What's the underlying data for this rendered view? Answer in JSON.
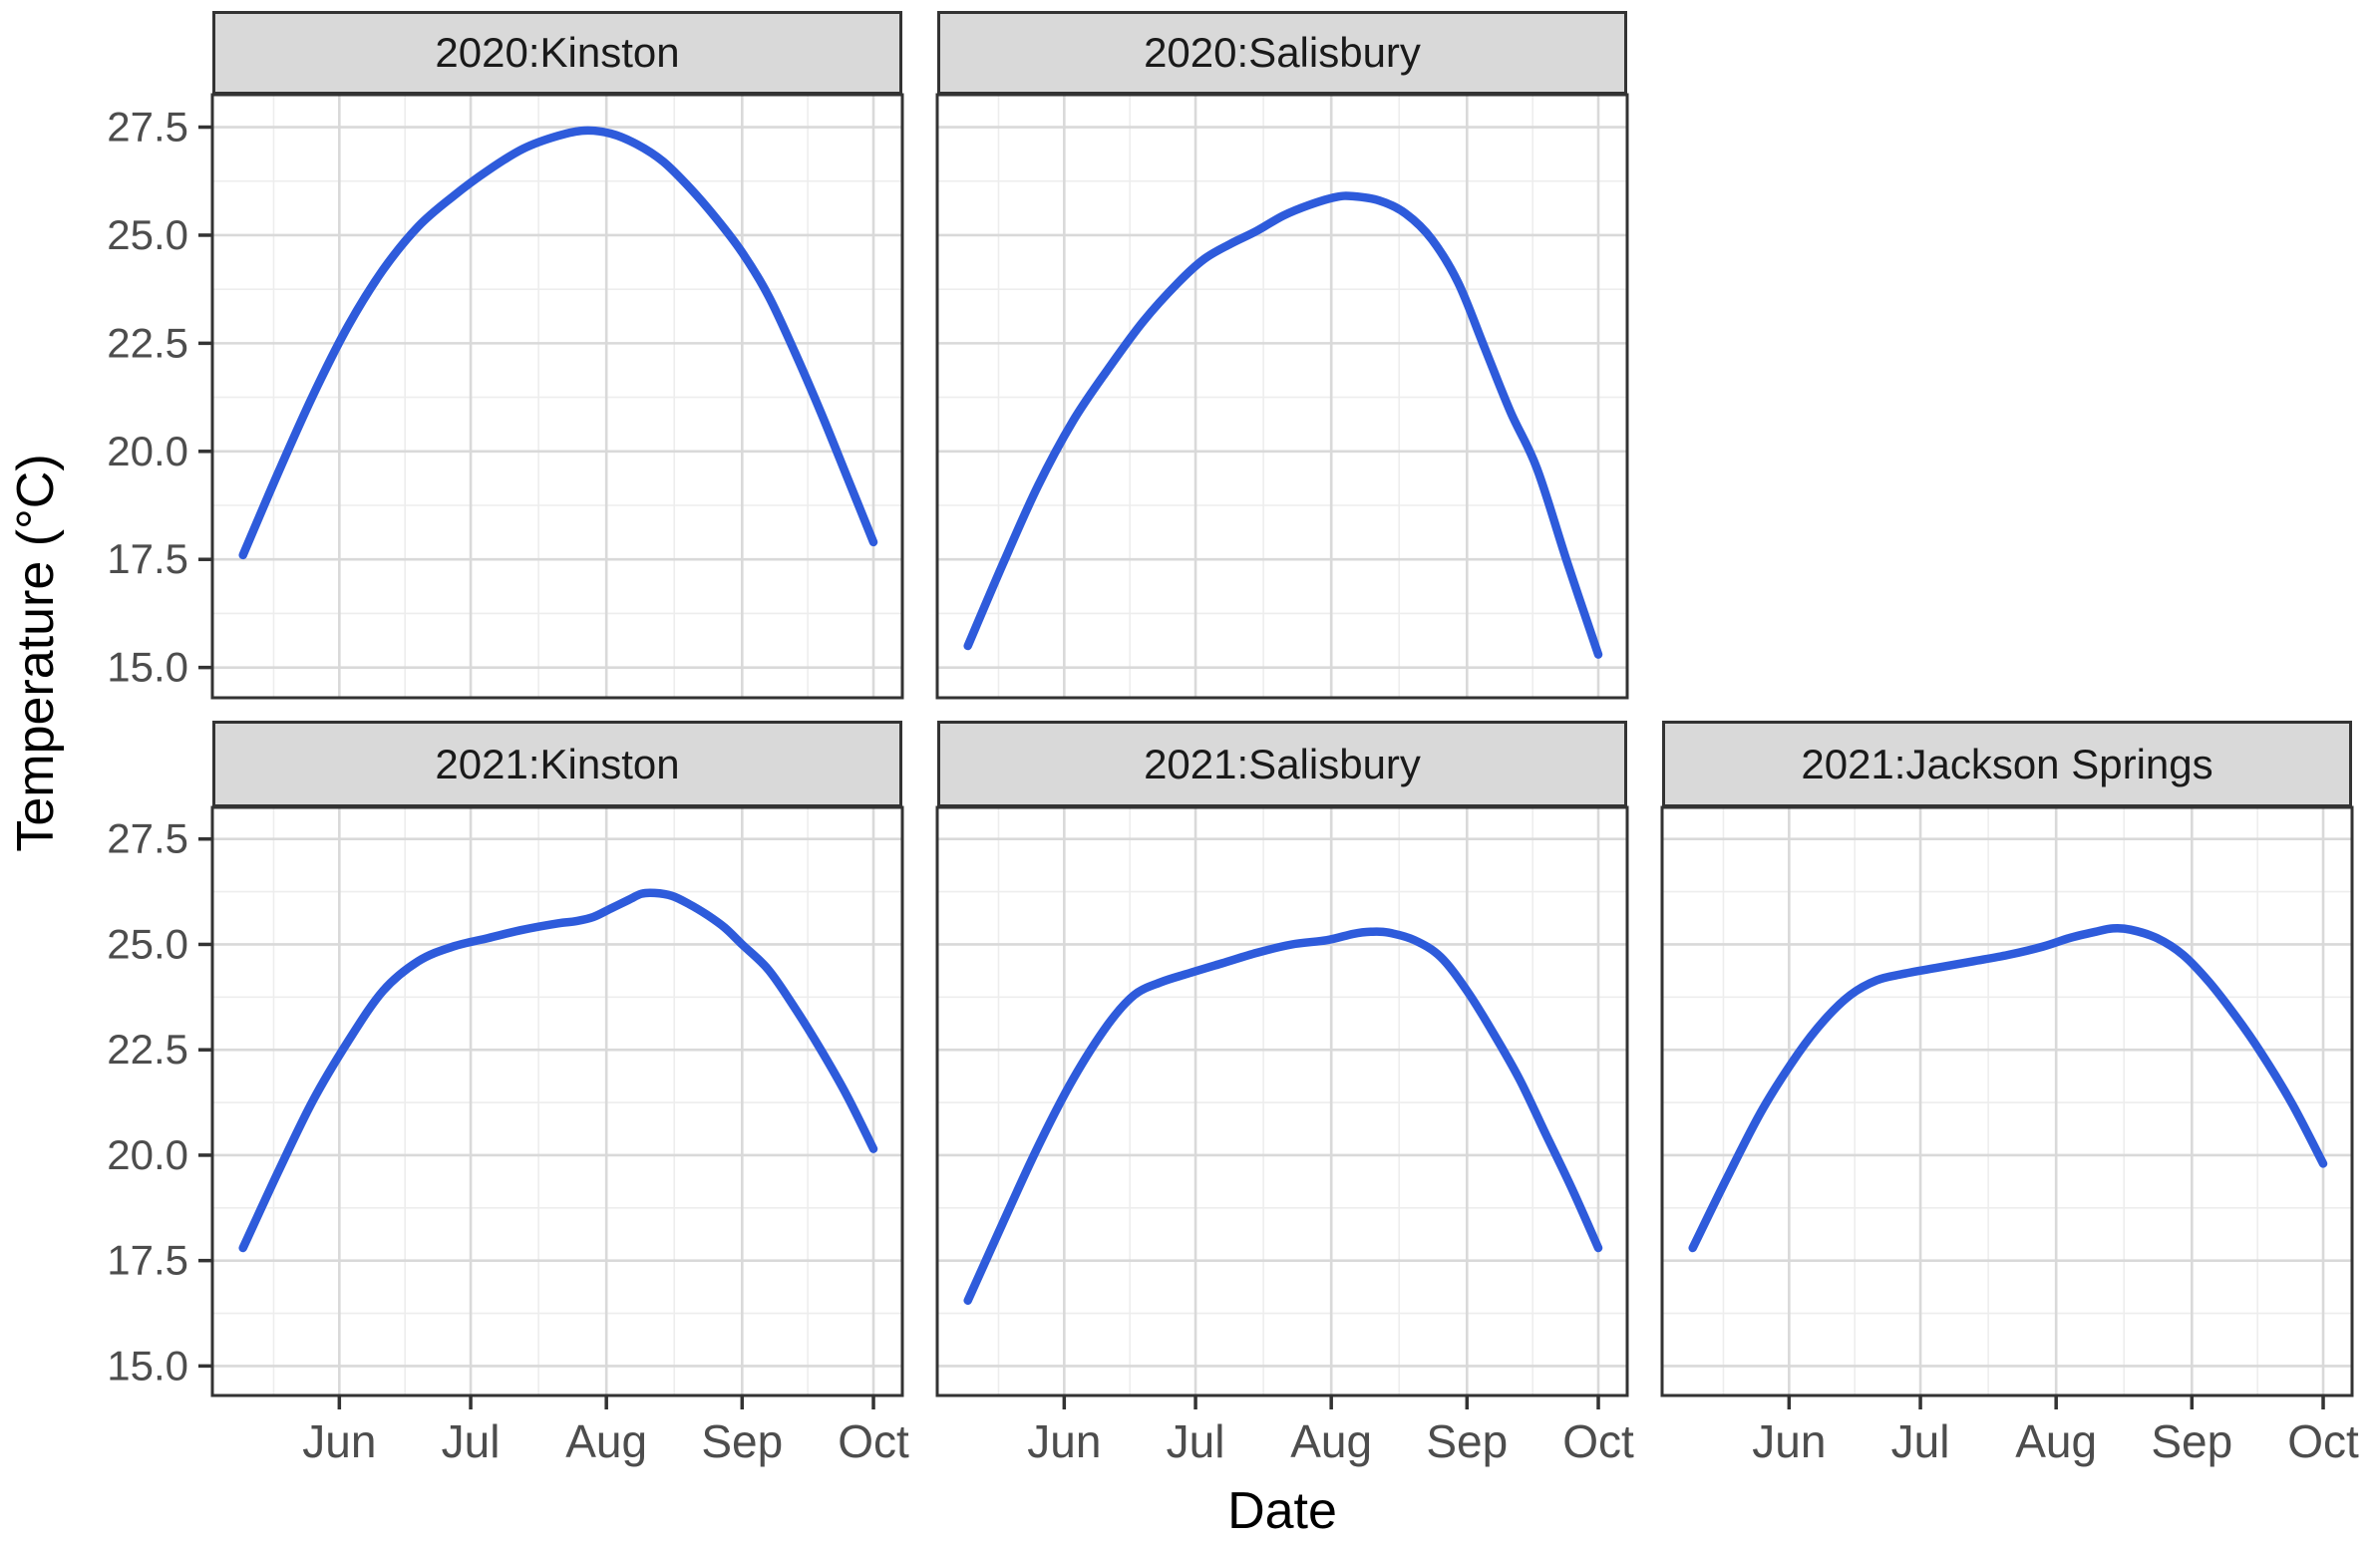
{
  "figure": {
    "x_axis_title": "Date",
    "y_axis_title": "Temperature (°C)"
  },
  "chart_data": {
    "type": "line",
    "title": "",
    "xlabel": "Date",
    "ylabel": "Temperature (°C)",
    "facet_variable": "year:location",
    "legend": "none",
    "grid": "on",
    "x_unit": "days since May 10",
    "x_domain": [
      -7,
      150.6
    ],
    "y_domain": [
      14.3,
      28.25
    ],
    "x_tick_labels": [
      "Jun",
      "Jul",
      "Aug",
      "Sep",
      "Oct"
    ],
    "x_tick_days": [
      22,
      52,
      83,
      114,
      144
    ],
    "x_minor_days": [
      7,
      37,
      67.5,
      98.5,
      129
    ],
    "y_tick_labels": [
      "15.0",
      "17.5",
      "20.0",
      "22.5",
      "25.0",
      "27.5"
    ],
    "y_tick_values": [
      15.0,
      17.5,
      20.0,
      22.5,
      25.0,
      27.5
    ],
    "y_minor_values": [
      16.25,
      18.75,
      21.25,
      23.75,
      26.25
    ],
    "line_color": "#2E5BDB",
    "grid_major_color": "#D9D9D9",
    "grid_minor_color": "#EDEDED",
    "strip_fill": "#D9D9D9",
    "border_color": "#333333",
    "tick_label_color": "#4d4d4d",
    "panels": [
      {
        "facet": "2020:Kinston",
        "row": 0,
        "col": 0,
        "points": [
          [
            0,
            17.6
          ],
          [
            8,
            19.5
          ],
          [
            16,
            21.3
          ],
          [
            24,
            22.9
          ],
          [
            32,
            24.2
          ],
          [
            40,
            25.2
          ],
          [
            48,
            25.9
          ],
          [
            56,
            26.5
          ],
          [
            64,
            27.0
          ],
          [
            72,
            27.3
          ],
          [
            78,
            27.42
          ],
          [
            84,
            27.35
          ],
          [
            90,
            27.1
          ],
          [
            96,
            26.7
          ],
          [
            102,
            26.1
          ],
          [
            108,
            25.4
          ],
          [
            114,
            24.6
          ],
          [
            120,
            23.6
          ],
          [
            126,
            22.3
          ],
          [
            132,
            20.9
          ],
          [
            138,
            19.4
          ],
          [
            144,
            17.9
          ]
        ]
      },
      {
        "facet": "2020:Salisbury",
        "row": 0,
        "col": 1,
        "points": [
          [
            0,
            15.5
          ],
          [
            8,
            17.4
          ],
          [
            16,
            19.2
          ],
          [
            24,
            20.7
          ],
          [
            32,
            21.9
          ],
          [
            40,
            23.0
          ],
          [
            48,
            23.9
          ],
          [
            54,
            24.45
          ],
          [
            60,
            24.8
          ],
          [
            66,
            25.1
          ],
          [
            72,
            25.45
          ],
          [
            78,
            25.7
          ],
          [
            84,
            25.88
          ],
          [
            88,
            25.9
          ],
          [
            94,
            25.8
          ],
          [
            100,
            25.5
          ],
          [
            106,
            24.9
          ],
          [
            112,
            23.9
          ],
          [
            118,
            22.4
          ],
          [
            124,
            20.9
          ],
          [
            130,
            19.6
          ],
          [
            137,
            17.4
          ],
          [
            144,
            15.3
          ]
        ]
      },
      {
        "facet": "2021:Kinston",
        "row": 1,
        "col": 0,
        "points": [
          [
            0,
            17.8
          ],
          [
            8,
            19.6
          ],
          [
            16,
            21.3
          ],
          [
            24,
            22.7
          ],
          [
            32,
            23.9
          ],
          [
            40,
            24.6
          ],
          [
            48,
            24.95
          ],
          [
            56,
            25.15
          ],
          [
            64,
            25.35
          ],
          [
            72,
            25.5
          ],
          [
            76,
            25.55
          ],
          [
            80,
            25.65
          ],
          [
            84,
            25.85
          ],
          [
            88,
            26.05
          ],
          [
            91,
            26.2
          ],
          [
            94,
            26.22
          ],
          [
            98,
            26.15
          ],
          [
            102,
            25.95
          ],
          [
            106,
            25.7
          ],
          [
            110,
            25.4
          ],
          [
            114,
            25.0
          ],
          [
            120,
            24.4
          ],
          [
            126,
            23.5
          ],
          [
            132,
            22.5
          ],
          [
            138,
            21.4
          ],
          [
            144,
            20.15
          ]
        ]
      },
      {
        "facet": "2021:Salisbury",
        "row": 1,
        "col": 1,
        "points": [
          [
            0,
            16.55
          ],
          [
            8,
            18.4
          ],
          [
            16,
            20.2
          ],
          [
            24,
            21.8
          ],
          [
            32,
            23.1
          ],
          [
            38,
            23.8
          ],
          [
            44,
            24.1
          ],
          [
            50,
            24.3
          ],
          [
            58,
            24.55
          ],
          [
            66,
            24.8
          ],
          [
            74,
            25.0
          ],
          [
            82,
            25.1
          ],
          [
            88,
            25.25
          ],
          [
            92,
            25.3
          ],
          [
            96,
            25.28
          ],
          [
            102,
            25.1
          ],
          [
            108,
            24.7
          ],
          [
            114,
            23.9
          ],
          [
            120,
            22.9
          ],
          [
            126,
            21.8
          ],
          [
            132,
            20.5
          ],
          [
            138,
            19.2
          ],
          [
            144,
            17.8
          ]
        ]
      },
      {
        "facet": "2021:Jackson Springs",
        "row": 1,
        "col": 2,
        "points": [
          [
            0,
            17.8
          ],
          [
            8,
            19.5
          ],
          [
            16,
            21.1
          ],
          [
            24,
            22.4
          ],
          [
            30,
            23.2
          ],
          [
            36,
            23.8
          ],
          [
            42,
            24.15
          ],
          [
            48,
            24.3
          ],
          [
            56,
            24.45
          ],
          [
            64,
            24.6
          ],
          [
            72,
            24.75
          ],
          [
            80,
            24.95
          ],
          [
            86,
            25.15
          ],
          [
            92,
            25.3
          ],
          [
            96,
            25.38
          ],
          [
            100,
            25.35
          ],
          [
            106,
            25.15
          ],
          [
            112,
            24.75
          ],
          [
            118,
            24.1
          ],
          [
            124,
            23.3
          ],
          [
            130,
            22.4
          ],
          [
            137,
            21.2
          ],
          [
            144,
            19.8
          ]
        ]
      }
    ]
  }
}
